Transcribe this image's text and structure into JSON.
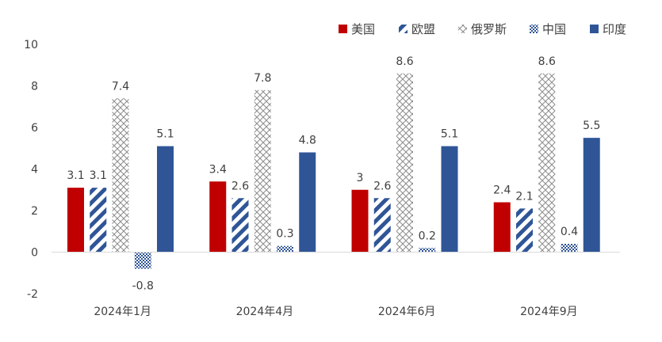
{
  "chart_data": {
    "type": "bar",
    "categories": [
      "2024年1月",
      "2024年4月",
      "2024年6月",
      "2024年9月"
    ],
    "series": [
      {
        "name": "美国",
        "values": [
          3.1,
          3.4,
          3,
          2.4
        ],
        "color": "#C00000",
        "pattern": "solid"
      },
      {
        "name": "欧盟",
        "values": [
          3.1,
          2.6,
          2.6,
          2.1
        ],
        "color": "#2F5597",
        "pattern": "wide-diagonal"
      },
      {
        "name": "俄罗斯",
        "values": [
          7.4,
          7.8,
          8.6,
          8.6
        ],
        "color": "#A6A6A6",
        "pattern": "diamond-grid"
      },
      {
        "name": "中国",
        "values": [
          -0.8,
          0.3,
          0.2,
          0.4
        ],
        "color": "#2F5597",
        "pattern": "checker"
      },
      {
        "name": "印度",
        "values": [
          5.1,
          4.8,
          5.1,
          5.5
        ],
        "color": "#2F5597",
        "pattern": "solid"
      }
    ],
    "data_labels": [
      [
        "3.1",
        "3.4",
        "3",
        "2.4"
      ],
      [
        "3.1",
        "2.6",
        "2.6",
        "2.1"
      ],
      [
        "7.4",
        "7.8",
        "8.6",
        "8.6"
      ],
      [
        "-0.8",
        "0.3",
        "0.2",
        "0.4"
      ],
      [
        "5.1",
        "4.8",
        "5.1",
        "5.5"
      ]
    ],
    "y_ticks": [
      "-2",
      "0",
      "2",
      "4",
      "6",
      "8",
      "10"
    ],
    "ylim": [
      -2,
      10
    ],
    "title": "",
    "xlabel": "",
    "ylabel": "",
    "grid": false,
    "legend_position": "top-right"
  }
}
